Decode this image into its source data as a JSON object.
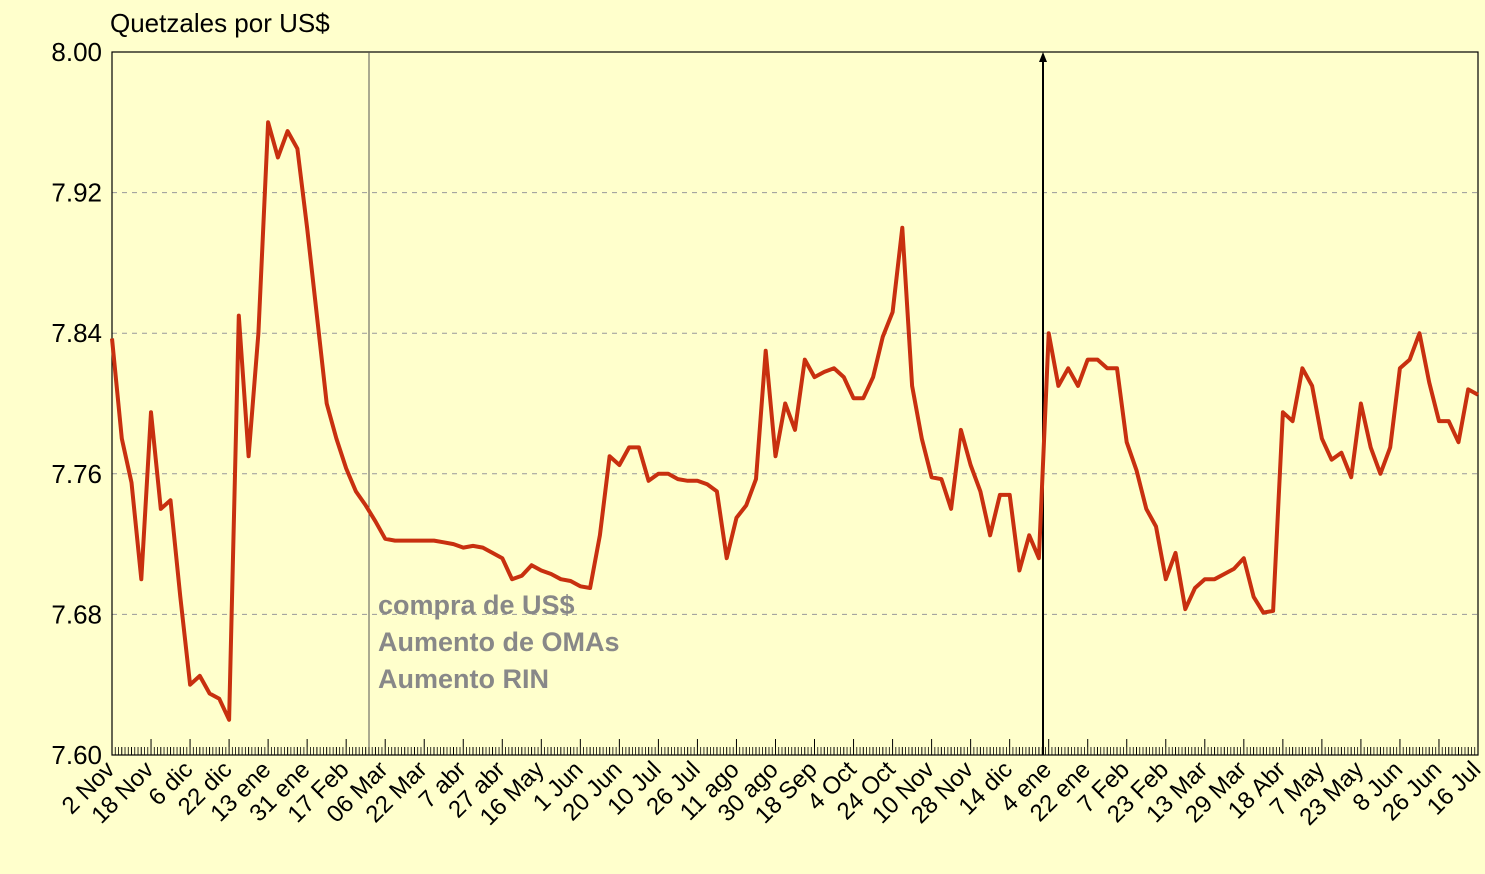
{
  "chart_data": {
    "type": "line",
    "y_axis_title": "Quetzales por US$",
    "color": "#c8300f",
    "ylim": [
      7.6,
      8.0
    ],
    "yticks": [
      {
        "value": 7.6,
        "label": "7.60"
      },
      7.68,
      7.76,
      7.84,
      7.92,
      {
        "value": 8.0,
        "label": "8.00"
      }
    ],
    "grid": true,
    "annotations": [
      "compra de US$",
      "Aumento de OMAs",
      "Aumento RIN"
    ],
    "categories": [
      "2 Nov",
      null,
      null,
      null,
      "18 Nov",
      null,
      null,
      null,
      "6 dic",
      null,
      null,
      null,
      "22 dic",
      null,
      null,
      null,
      "13 ene",
      null,
      null,
      null,
      "31 ene",
      null,
      null,
      null,
      "17 Feb",
      null,
      null,
      null,
      "06 Mar",
      null,
      null,
      null,
      "22 Mar",
      null,
      null,
      null,
      "7 abr",
      null,
      null,
      null,
      "27 abr",
      null,
      null,
      null,
      "16 May",
      null,
      null,
      null,
      "1 Jun",
      null,
      null,
      null,
      "20 Jun",
      null,
      null,
      null,
      "10 Jul",
      null,
      null,
      null,
      "26 Jul",
      null,
      null,
      null,
      "11 ago",
      null,
      null,
      null,
      "30 ago",
      null,
      null,
      null,
      "18 Sep",
      null,
      null,
      null,
      "4 Oct",
      null,
      null,
      null,
      "24 Oct",
      null,
      null,
      null,
      "10 Nov",
      null,
      null,
      null,
      "28 Nov",
      null,
      null,
      null,
      "14 dic",
      null,
      null,
      null,
      "4 ene",
      null,
      null,
      null,
      "22 ene",
      null,
      null,
      null,
      "7 Feb",
      null,
      null,
      null,
      "23 Feb",
      null,
      null,
      null,
      "13 Mar",
      null,
      null,
      null,
      "29 Mar",
      null,
      null,
      null,
      "18 Abr",
      null,
      null,
      null,
      "7 May",
      null,
      null,
      null,
      "23 May",
      null,
      null,
      null,
      "8 Jun",
      null,
      null,
      null,
      "26 Jun",
      null,
      null,
      null,
      "16 Jul"
    ],
    "values": [
      7.837,
      7.78,
      7.755,
      7.7,
      7.795,
      7.74,
      7.745,
      7.69,
      7.64,
      7.645,
      7.635,
      7.632,
      7.62,
      7.85,
      7.77,
      7.84,
      7.96,
      7.94,
      7.955,
      7.945,
      7.9,
      7.85,
      7.8,
      7.78,
      7.763,
      7.75,
      7.742,
      7.733,
      7.723,
      7.722,
      7.722,
      7.722,
      7.722,
      7.722,
      7.721,
      7.72,
      7.718,
      7.719,
      7.718,
      7.715,
      7.712,
      7.7,
      7.702,
      7.708,
      7.705,
      7.703,
      7.7,
      7.699,
      7.696,
      7.695,
      7.725,
      7.77,
      7.765,
      7.775,
      7.775,
      7.756,
      7.76,
      7.76,
      7.757,
      7.756,
      7.756,
      7.754,
      7.75,
      7.712,
      7.735,
      7.742,
      7.757,
      7.83,
      7.77,
      7.8,
      7.785,
      7.825,
      7.815,
      7.818,
      7.82,
      7.815,
      7.803,
      7.803,
      7.815,
      7.838,
      7.852,
      7.9,
      7.81,
      7.78,
      7.758,
      7.757,
      7.74,
      7.785,
      7.765,
      7.75,
      7.725,
      7.748,
      7.748,
      7.705,
      7.725,
      7.712,
      7.84,
      7.81,
      7.82,
      7.81,
      7.825,
      7.825,
      7.82,
      7.82,
      7.778,
      7.762,
      7.74,
      7.73,
      7.7,
      7.715,
      7.683,
      7.695,
      7.7,
      7.7,
      7.703,
      7.706,
      7.712,
      7.69,
      7.681,
      7.682,
      7.795,
      7.79,
      7.82,
      7.81,
      7.78,
      7.768,
      7.772,
      7.758,
      7.8,
      7.775,
      7.76,
      7.775,
      7.82,
      7.825,
      7.84,
      7.812,
      7.79,
      7.79,
      7.778,
      7.808,
      7.805
    ]
  }
}
